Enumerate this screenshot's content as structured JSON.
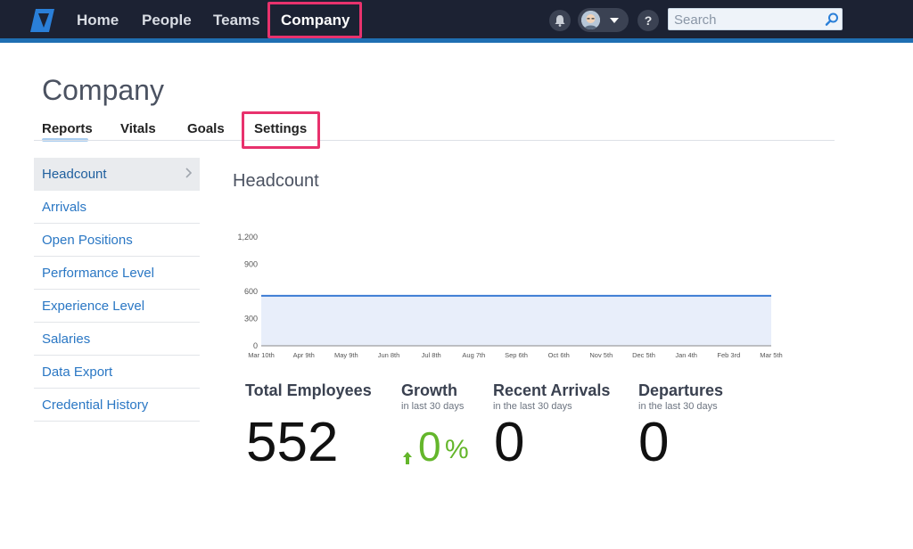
{
  "nav": {
    "items": [
      {
        "label": "Home"
      },
      {
        "label": "People"
      },
      {
        "label": "Teams"
      },
      {
        "label": "Company"
      }
    ],
    "search_placeholder": "Search",
    "help_label": "?"
  },
  "page": {
    "title": "Company",
    "tabs": [
      {
        "label": "Reports"
      },
      {
        "label": "Vitals"
      },
      {
        "label": "Goals"
      },
      {
        "label": "Settings"
      }
    ]
  },
  "sidebar": {
    "items": [
      {
        "label": "Headcount"
      },
      {
        "label": "Arrivals"
      },
      {
        "label": "Open Positions"
      },
      {
        "label": "Performance Level"
      },
      {
        "label": "Experience Level"
      },
      {
        "label": "Salaries"
      },
      {
        "label": "Data Export"
      },
      {
        "label": "Credential History"
      }
    ]
  },
  "main": {
    "section_title": "Headcount"
  },
  "chart_data": {
    "type": "area",
    "x": [
      "Mar 10th",
      "Apr 9th",
      "May 9th",
      "Jun 8th",
      "Jul 8th",
      "Aug 7th",
      "Sep 6th",
      "Oct 6th",
      "Nov 5th",
      "Dec 5th",
      "Jan 4th",
      "Feb 3rd",
      "Mar 5th"
    ],
    "y_ticks": [
      "0",
      "300",
      "600",
      "900",
      "1,200"
    ],
    "ylim": [
      0,
      1200
    ],
    "series": [
      {
        "values": [
          552,
          552,
          552,
          552,
          552,
          552,
          552,
          552,
          552,
          552,
          552,
          552,
          552
        ]
      }
    ],
    "line_color": "#3b7bd4",
    "fill_color": "#e8eefa"
  },
  "stats": {
    "total": {
      "title": "Total Employees",
      "value": "552"
    },
    "growth": {
      "title": "Growth",
      "sub": "in last 30 days",
      "value": "0",
      "unit": "%"
    },
    "arrivals": {
      "title": "Recent Arrivals",
      "sub": "in the last 30 days",
      "value": "0"
    },
    "departures": {
      "title": "Departures",
      "sub": "in the last 30 days",
      "value": "0"
    }
  },
  "colors": {
    "accent_highlight": "#e8326d",
    "link": "#2a77c4",
    "growth_green": "#64b62b"
  }
}
